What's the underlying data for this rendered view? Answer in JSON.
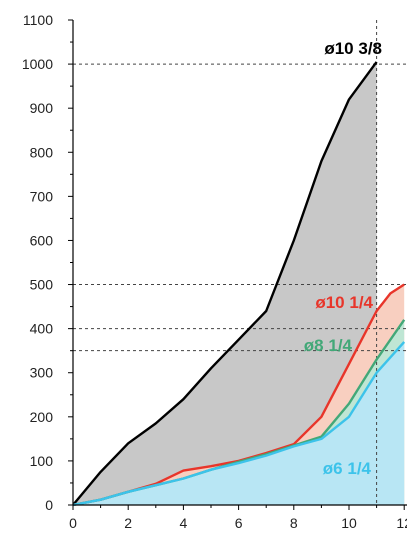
{
  "chart_data": {
    "type": "area",
    "title": "",
    "xlabel": "",
    "ylabel": "",
    "xlim": [
      0,
      11.2
    ],
    "ylim": [
      0,
      1100
    ],
    "x_ticks": [
      0,
      2,
      4,
      6,
      8,
      10,
      12
    ],
    "x_tick_labels": [
      "0",
      "2",
      "4",
      "6",
      "8",
      "10",
      "12"
    ],
    "y_ticks": [
      0,
      100,
      200,
      300,
      400,
      500,
      600,
      700,
      800,
      900,
      1000,
      1100
    ],
    "y_tick_labels": [
      "0",
      "100",
      "200",
      "300",
      "400",
      "500",
      "600",
      "700",
      "800",
      "900",
      "1000",
      "1100"
    ],
    "reference_lines": {
      "horizontal": [
        1000,
        500,
        400,
        350
      ],
      "vertical": [
        11
      ]
    },
    "series": [
      {
        "name": "ø10 3/8",
        "color": "#000000",
        "fill": "#c8c8c8",
        "points": [
          [
            0,
            0
          ],
          [
            1,
            75
          ],
          [
            2,
            140
          ],
          [
            3,
            185
          ],
          [
            4,
            240
          ],
          [
            5,
            310
          ],
          [
            6,
            375
          ],
          [
            7,
            440
          ],
          [
            8,
            600
          ],
          [
            9,
            780
          ],
          [
            10,
            920
          ],
          [
            11,
            1005
          ]
        ]
      },
      {
        "name": "ø10 1/4",
        "color": "#e8352a",
        "fill": "#f8cfc0",
        "points": [
          [
            0,
            0
          ],
          [
            1,
            12
          ],
          [
            2,
            30
          ],
          [
            3,
            48
          ],
          [
            4,
            78
          ],
          [
            5,
            88
          ],
          [
            6,
            100
          ],
          [
            7,
            118
          ],
          [
            8,
            138
          ],
          [
            9,
            200
          ],
          [
            10,
            320
          ],
          [
            11,
            440
          ],
          [
            11.5,
            480
          ],
          [
            12,
            500
          ]
        ]
      },
      {
        "name": "ø8 1/4",
        "color": "#43a878",
        "fill": "#bfe6d4",
        "points": [
          [
            0,
            0
          ],
          [
            1,
            12
          ],
          [
            2,
            30
          ],
          [
            3,
            45
          ],
          [
            4,
            60
          ],
          [
            5,
            80
          ],
          [
            6,
            98
          ],
          [
            7,
            115
          ],
          [
            8,
            135
          ],
          [
            9,
            155
          ],
          [
            10,
            230
          ],
          [
            11,
            330
          ],
          [
            12,
            420
          ]
        ]
      },
      {
        "name": "ø6 1/4",
        "color": "#3cc3ea",
        "fill": "#b8e6f4",
        "points": [
          [
            0,
            0
          ],
          [
            1,
            12
          ],
          [
            2,
            30
          ],
          [
            3,
            45
          ],
          [
            4,
            60
          ],
          [
            5,
            80
          ],
          [
            6,
            95
          ],
          [
            7,
            112
          ],
          [
            8,
            133
          ],
          [
            9,
            150
          ],
          [
            10,
            200
          ],
          [
            11,
            300
          ],
          [
            12,
            370
          ]
        ]
      }
    ]
  }
}
